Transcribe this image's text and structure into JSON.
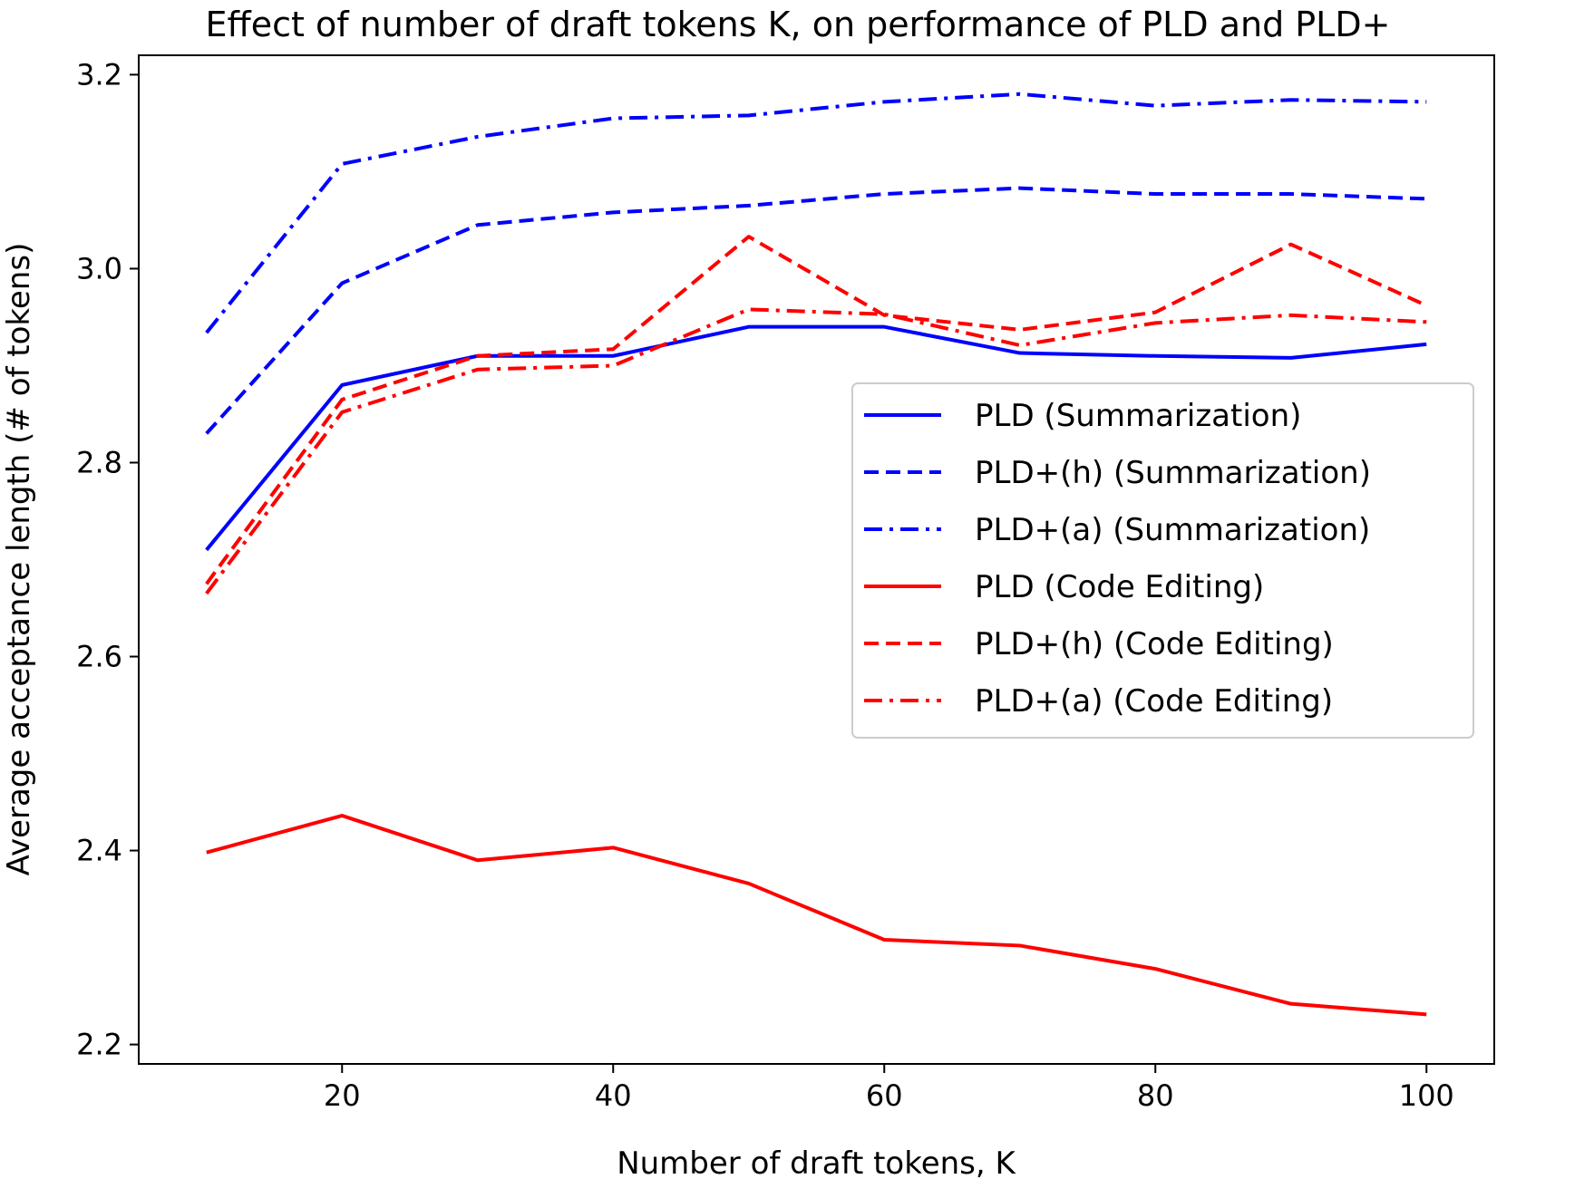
{
  "chart_data": {
    "type": "line",
    "title": "Effect of number of draft tokens K, on performance of PLD and PLD+",
    "xlabel": "Number of draft tokens, K",
    "ylabel": "Average acceptance length (# of tokens)",
    "xlim": [
      5,
      105
    ],
    "ylim": [
      2.18,
      3.22
    ],
    "xticks": [
      20,
      40,
      60,
      80,
      100
    ],
    "yticks": [
      2.2,
      2.4,
      2.6,
      2.8,
      3.0,
      3.2
    ],
    "ytick_labels": [
      "2.2",
      "2.4",
      "2.6",
      "2.8",
      "3.0",
      "3.2"
    ],
    "grid": false,
    "legend_position": "center-right",
    "x": [
      10,
      20,
      30,
      40,
      50,
      60,
      70,
      80,
      90,
      100
    ],
    "series": [
      {
        "name": "PLD (Summarization)",
        "color": "#0000ff",
        "dash": "solid",
        "values": [
          2.71,
          2.88,
          2.91,
          2.91,
          2.94,
          2.94,
          2.913,
          2.91,
          2.908,
          2.922
        ]
      },
      {
        "name": "PLD+(h) (Summarization)",
        "color": "#0000ff",
        "dash": "dashed",
        "values": [
          2.83,
          2.985,
          3.045,
          3.058,
          3.065,
          3.077,
          3.083,
          3.077,
          3.077,
          3.072
        ]
      },
      {
        "name": "PLD+(a) (Summarization)",
        "color": "#0000ff",
        "dash": "dashdot",
        "values": [
          2.934,
          3.108,
          3.136,
          3.155,
          3.158,
          3.172,
          3.18,
          3.168,
          3.174,
          3.172
        ]
      },
      {
        "name": "PLD (Code Editing)",
        "color": "#ff0000",
        "dash": "solid",
        "values": [
          2.398,
          2.436,
          2.39,
          2.403,
          2.366,
          2.308,
          2.302,
          2.278,
          2.242,
          2.231
        ]
      },
      {
        "name": "PLD+(h) (Code Editing)",
        "color": "#ff0000",
        "dash": "dashed",
        "values": [
          2.675,
          2.865,
          2.91,
          2.917,
          3.033,
          2.952,
          2.937,
          2.955,
          3.025,
          2.962
        ]
      },
      {
        "name": "PLD+(a) (Code Editing)",
        "color": "#ff0000",
        "dash": "dashdot",
        "values": [
          2.665,
          2.852,
          2.896,
          2.9,
          2.958,
          2.953,
          2.921,
          2.944,
          2.952,
          2.945
        ]
      }
    ]
  }
}
